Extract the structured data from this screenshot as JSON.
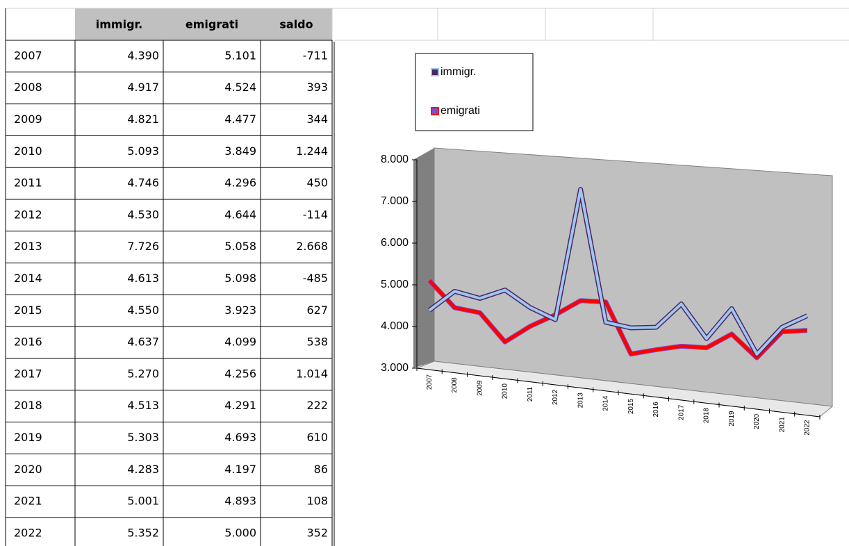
{
  "table": {
    "header": [
      "immigr.",
      "emigrati",
      "saldo"
    ],
    "rows": [
      [
        "2007",
        "4.390",
        "5.101",
        "-711"
      ],
      [
        "2008",
        "4.917",
        "4.524",
        "393"
      ],
      [
        "2009",
        "4.821",
        "4.477",
        "344"
      ],
      [
        "2010",
        "5.093",
        "3.849",
        "1.244"
      ],
      [
        "2011",
        "4.746",
        "4.296",
        "450"
      ],
      [
        "2012",
        "4.530",
        "4.644",
        "-114"
      ],
      [
        "2013",
        "7.726",
        "5.058",
        "2.668"
      ],
      [
        "2014",
        "4.613",
        "5.098",
        "-485"
      ],
      [
        "2015",
        "4.550",
        "3.923",
        "627"
      ],
      [
        "2016",
        "4.637",
        "4.099",
        "538"
      ],
      [
        "2017",
        "5.270",
        "4.256",
        "1.014"
      ],
      [
        "2018",
        "4.513",
        "4.291",
        "222"
      ],
      [
        "2019",
        "5.303",
        "4.693",
        "610"
      ],
      [
        "2020",
        "4.283",
        "4.197",
        "86"
      ],
      [
        "2021",
        "5.001",
        "4.893",
        "108"
      ],
      [
        "2022",
        "5.352",
        "5.000",
        "352"
      ]
    ]
  },
  "chart_data": {
    "type": "line",
    "categories": [
      "2007",
      "2008",
      "2009",
      "2010",
      "2011",
      "2012",
      "2013",
      "2014",
      "2015",
      "2016",
      "2017",
      "2018",
      "2019",
      "2020",
      "2021",
      "2022"
    ],
    "series": [
      {
        "name": "immigr.",
        "color": "#9fc5f0",
        "edge_color": "#4b2660",
        "values": [
          4390,
          4917,
          4821,
          5093,
          4746,
          4530,
          7726,
          4613,
          4550,
          4637,
          5270,
          4513,
          5303,
          4283,
          5001,
          5352
        ]
      },
      {
        "name": "emigrati",
        "color": "#ff0000",
        "edge_color": "#7a4fd0",
        "values": [
          5101,
          4524,
          4477,
          3849,
          4296,
          4644,
          5058,
          5098,
          3923,
          4099,
          4256,
          4291,
          4693,
          4197,
          4893,
          5000
        ]
      }
    ],
    "ylim": [
      3000,
      8000
    ],
    "yticks": [
      {
        "value": 3000,
        "label": "3.000"
      },
      {
        "value": 4000,
        "label": "4.000"
      },
      {
        "value": 5000,
        "label": "5.000"
      },
      {
        "value": 6000,
        "label": "6.000"
      },
      {
        "value": 7000,
        "label": "7.000"
      },
      {
        "value": 8000,
        "label": "8.000"
      }
    ],
    "legend": "top-left"
  }
}
